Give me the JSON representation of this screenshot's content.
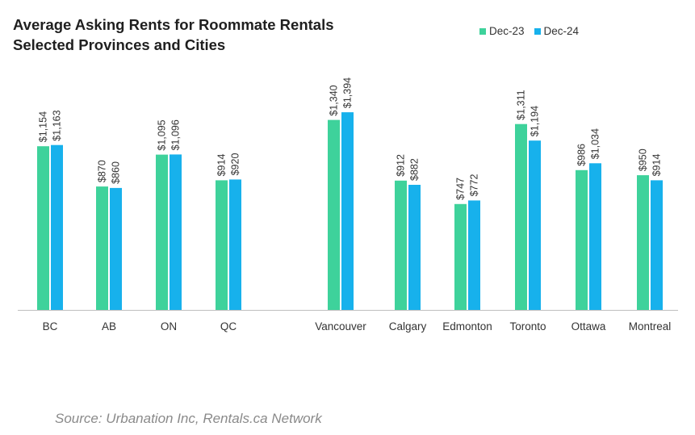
{
  "chart_data": {
    "type": "bar",
    "title_lines": [
      "Average Asking Rents for Roommate Rentals",
      "Selected Provinces and Cities"
    ],
    "xlabel": "",
    "ylabel": "",
    "categories": [
      "BC",
      "AB",
      "ON",
      "QC",
      "Vancouver",
      "Calgary",
      "Edmonton",
      "Toronto",
      "Ottawa",
      "Montreal"
    ],
    "series": [
      {
        "name": "Dec-23",
        "color": "#3ed29b",
        "values": [
          1154,
          870,
          1095,
          914,
          1340,
          912,
          747,
          1311,
          986,
          950
        ],
        "labels": [
          "$1,154",
          "$870",
          "$1,095",
          "$914",
          "$1,340",
          "$912",
          "$747",
          "$1,311",
          "$986",
          "$950"
        ]
      },
      {
        "name": "Dec-24",
        "color": "#17b1ec",
        "values": [
          1163,
          860,
          1096,
          920,
          1394,
          882,
          772,
          1194,
          1034,
          914
        ],
        "labels": [
          "$1,163",
          "$860",
          "$1,096",
          "$920",
          "$1,394",
          "$882",
          "$772",
          "$1,194",
          "$1,034",
          "$914"
        ]
      }
    ],
    "ylim": [
      0,
      1500
    ],
    "grid": false,
    "legend_position": "top-right"
  },
  "source": "Source: Urbanation Inc, Rentals.ca Network"
}
